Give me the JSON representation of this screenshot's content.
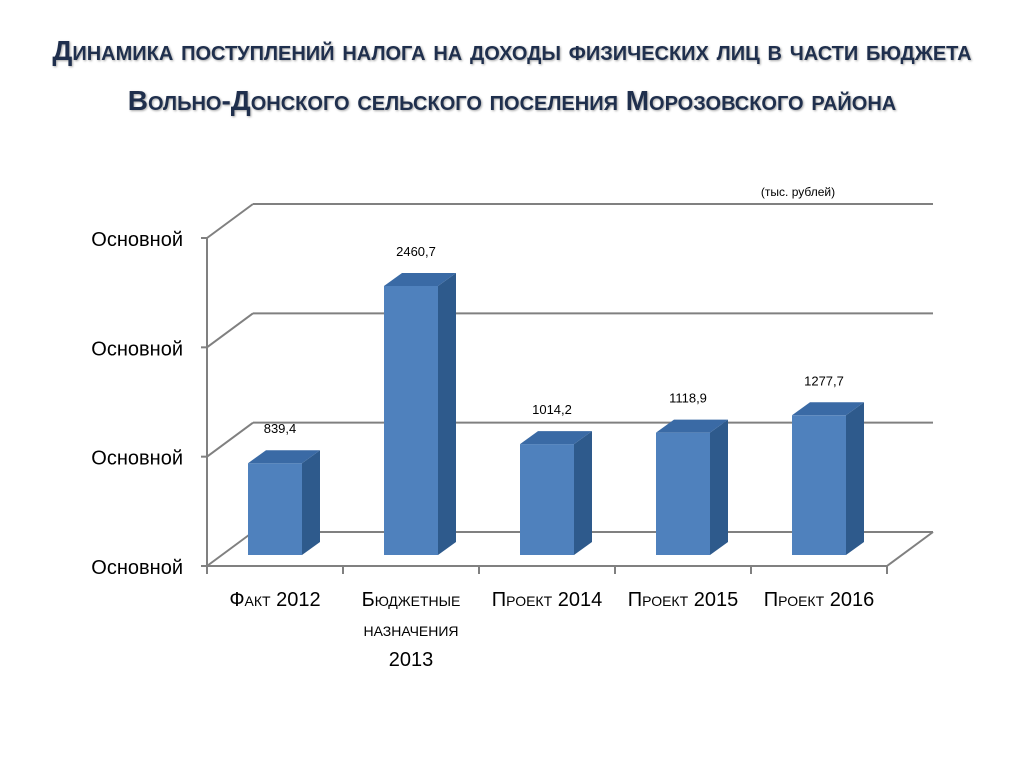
{
  "slide": {
    "title": "Динамика поступлений налога на доходы физических лиц в части  бюджета Вольно-Донского сельского поселения Морозовского района"
  },
  "chart_data": {
    "type": "bar",
    "title": "Динамика поступлений налога на доходы физических лиц в части  бюджета Вольно-Донского сельского поселения Морозовского района",
    "unit_note": "(тыс. рублей)",
    "categories": [
      [
        "Факт 2012"
      ],
      [
        "Бюджетные",
        "назначения",
        "2013"
      ],
      [
        "Проект 2014"
      ],
      [
        "Проект 2015"
      ],
      [
        "Проект 2016"
      ]
    ],
    "values": [
      839.4,
      2460.7,
      1014.2,
      1118.9,
      1277.7
    ],
    "data_labels": [
      "839,4",
      "2460,7",
      "1014,2",
      "1118,9",
      "1277,7"
    ],
    "ytick_labels": [
      "Основной",
      "Основной",
      "Основной",
      "Основной"
    ],
    "ylim": [
      0,
      3000
    ],
    "grid": true,
    "style": "3d-column",
    "colors": {
      "bar_front": "#4f81bd",
      "bar_side": "#2e5a8c",
      "bar_top": "#3a6aa5",
      "grid": "#808080",
      "title": "#1f2f4d"
    }
  }
}
